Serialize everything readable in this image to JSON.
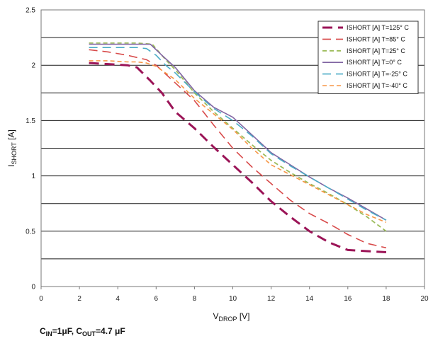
{
  "chart_data": {
    "type": "line",
    "x_axis": {
      "label_main": "V",
      "label_sub": "DROP",
      "label_unit": " [V]",
      "range": [
        0,
        20
      ],
      "ticks": [
        0,
        2,
        4,
        6,
        8,
        10,
        12,
        14,
        16,
        18,
        20
      ]
    },
    "y_axis": {
      "label_main": "I",
      "label_sub": "SHORT",
      "label_unit": " [A]",
      "range": [
        0,
        2.5
      ],
      "ticks": [
        0,
        0.25,
        0.5,
        0.75,
        1,
        1.25,
        1.5,
        1.75,
        2,
        2.25,
        2.5
      ],
      "tick_labels": [
        "0",
        "",
        "0.5",
        "",
        "1",
        "",
        "1.5",
        "",
        "2",
        "",
        "2.5"
      ]
    },
    "grid": "horizontal",
    "legend_position": "top-right",
    "series": [
      {
        "name": "ISHORT [A] T=125° C",
        "color": "#9b1457",
        "dash": "14,8",
        "width": 3,
        "x": [
          2.5,
          3.5,
          4.5,
          5,
          5.7,
          6.3,
          7,
          8,
          9,
          10,
          11,
          12,
          13,
          14,
          15,
          16,
          17,
          18
        ],
        "y": [
          2.02,
          2.01,
          2.0,
          1.98,
          1.86,
          1.75,
          1.58,
          1.43,
          1.26,
          1.1,
          0.94,
          0.77,
          0.63,
          0.5,
          0.4,
          0.33,
          0.32,
          0.31
        ]
      },
      {
        "name": "ISHORT [A] T=85° C",
        "color": "#d84a4a",
        "dash": "12,7",
        "width": 1.6,
        "x": [
          2.5,
          3.5,
          4.5,
          5,
          5.5,
          6,
          7,
          8,
          9,
          10,
          11,
          12,
          13,
          14,
          15,
          16,
          17,
          18
        ],
        "y": [
          2.14,
          2.12,
          2.09,
          2.07,
          2.05,
          2.0,
          1.84,
          1.68,
          1.46,
          1.25,
          1.08,
          0.93,
          0.78,
          0.66,
          0.57,
          0.47,
          0.39,
          0.35
        ]
      },
      {
        "name": "ISHORT [A] T=25° C",
        "color": "#9bbb59",
        "dash": "6,4",
        "width": 1.8,
        "x": [
          2.5,
          3.5,
          4.5,
          5,
          5.8,
          6.5,
          7,
          8,
          9,
          10,
          11,
          12,
          13,
          14,
          15,
          16,
          17,
          18
        ],
        "y": [
          2.2,
          2.2,
          2.2,
          2.2,
          2.19,
          2.05,
          1.96,
          1.75,
          1.58,
          1.43,
          1.28,
          1.14,
          1.03,
          0.93,
          0.84,
          0.74,
          0.63,
          0.5
        ]
      },
      {
        "name": "ISHORT [A] T=0° C",
        "color": "#8064a2",
        "dash": "",
        "width": 1.6,
        "x": [
          2.5,
          3.5,
          4.5,
          5,
          5.7,
          6.3,
          7,
          8,
          9,
          10,
          11,
          12,
          13,
          14,
          15,
          16,
          17,
          18
        ],
        "y": [
          2.19,
          2.19,
          2.19,
          2.19,
          2.19,
          2.09,
          1.98,
          1.77,
          1.62,
          1.53,
          1.37,
          1.21,
          1.1,
          0.99,
          0.89,
          0.8,
          0.7,
          0.6
        ]
      },
      {
        "name": "ISHORT [A] T=-25° C",
        "color": "#4bacc6",
        "dash": "12,7",
        "width": 1.6,
        "x": [
          2.5,
          3.5,
          4.5,
          5,
          5.5,
          6,
          6.5,
          7,
          8,
          9,
          10,
          11,
          12,
          13,
          14,
          15,
          16,
          17,
          18
        ],
        "y": [
          2.16,
          2.16,
          2.16,
          2.16,
          2.15,
          2.09,
          2.0,
          1.93,
          1.76,
          1.61,
          1.5,
          1.36,
          1.2,
          1.09,
          0.99,
          0.89,
          0.79,
          0.69,
          0.6
        ]
      },
      {
        "name": "ISHORT [A] T=-40° C",
        "color": "#f79646",
        "dash": "6,4",
        "width": 1.6,
        "x": [
          2.5,
          3.5,
          4.5,
          5,
          5.5,
          6,
          7,
          8,
          9,
          10,
          11,
          12,
          13,
          14,
          15,
          16,
          17,
          18
        ],
        "y": [
          2.04,
          2.04,
          2.03,
          2.03,
          2.02,
          1.99,
          1.87,
          1.7,
          1.56,
          1.42,
          1.25,
          1.1,
          1.01,
          0.92,
          0.83,
          0.74,
          0.65,
          0.58
        ]
      }
    ]
  },
  "footnote": {
    "parts": [
      {
        "text": "C",
        "sub": false
      },
      {
        "text": "IN",
        "sub": true
      },
      {
        "text": "=1μF, C",
        "sub": false
      },
      {
        "text": "OUT",
        "sub": true
      },
      {
        "text": "=4.7 μF",
        "sub": false
      }
    ]
  }
}
